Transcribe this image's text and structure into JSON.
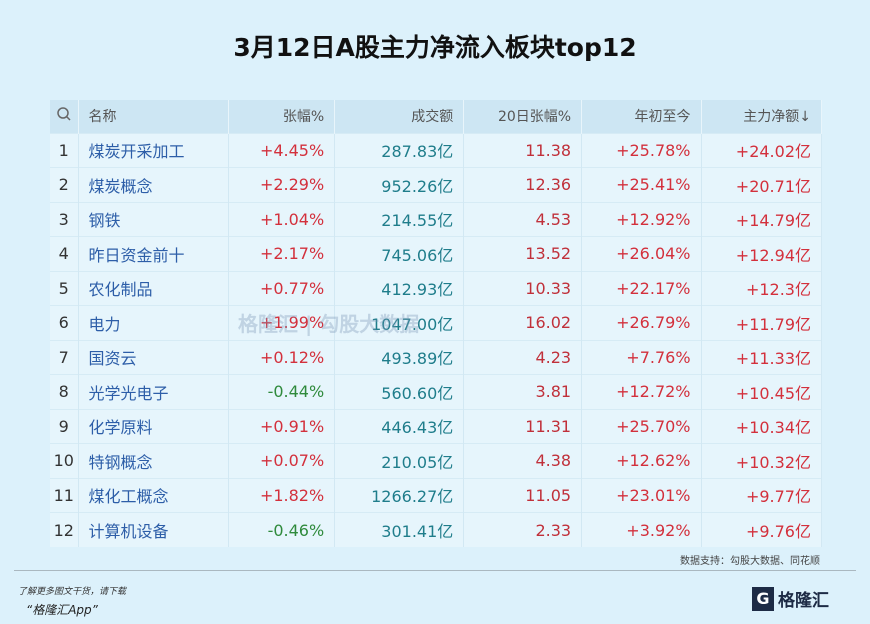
{
  "title": "3月12日A股主力净流入板块top12",
  "headers": [
    "名称",
    "张幅%",
    "成交额",
    "20日张幅%",
    "年初至今",
    "主力净额↓"
  ],
  "search_icon": "search-icon",
  "rows": [
    {
      "rank": "1",
      "name": "煤炭开采加工",
      "chg": "+4.45%",
      "vol": "287.83亿",
      "d20": "11.38",
      "ytd": "+25.78%",
      "net": "+24.02亿"
    },
    {
      "rank": "2",
      "name": "煤炭概念",
      "chg": "+2.29%",
      "vol": "952.26亿",
      "d20": "12.36",
      "ytd": "+25.41%",
      "net": "+20.71亿"
    },
    {
      "rank": "3",
      "name": "钢铁",
      "chg": "+1.04%",
      "vol": "214.55亿",
      "d20": "4.53",
      "ytd": "+12.92%",
      "net": "+14.79亿"
    },
    {
      "rank": "4",
      "name": "昨日资金前十",
      "chg": "+2.17%",
      "vol": "745.06亿",
      "d20": "13.52",
      "ytd": "+26.04%",
      "net": "+12.94亿"
    },
    {
      "rank": "5",
      "name": "农化制品",
      "chg": "+0.77%",
      "vol": "412.93亿",
      "d20": "10.33",
      "ytd": "+22.17%",
      "net": "+12.3亿"
    },
    {
      "rank": "6",
      "name": "电力",
      "chg": "+1.99%",
      "vol": "1047.00亿",
      "d20": "16.02",
      "ytd": "+26.79%",
      "net": "+11.79亿"
    },
    {
      "rank": "7",
      "name": "国资云",
      "chg": "+0.12%",
      "vol": "493.89亿",
      "d20": "4.23",
      "ytd": "+7.76%",
      "net": "+11.33亿"
    },
    {
      "rank": "8",
      "name": "光学光电子",
      "chg": "-0.44%",
      "vol": "560.60亿",
      "d20": "3.81",
      "ytd": "+12.72%",
      "net": "+10.45亿"
    },
    {
      "rank": "9",
      "name": "化学原料",
      "chg": "+0.91%",
      "vol": "446.43亿",
      "d20": "11.31",
      "ytd": "+25.70%",
      "net": "+10.34亿"
    },
    {
      "rank": "10",
      "name": "特钢概念",
      "chg": "+0.07%",
      "vol": "210.05亿",
      "d20": "4.38",
      "ytd": "+12.62%",
      "net": "+10.32亿"
    },
    {
      "rank": "11",
      "name": "煤化工概念",
      "chg": "+1.82%",
      "vol": "1266.27亿",
      "d20": "11.05",
      "ytd": "+23.01%",
      "net": "+9.77亿"
    },
    {
      "rank": "12",
      "name": "计算机设备",
      "chg": "-0.46%",
      "vol": "301.41亿",
      "d20": "2.33",
      "ytd": "+3.92%",
      "net": "+9.76亿"
    }
  ],
  "source": "数据支持：勾股大数据、同花顺",
  "promo_line1": "了解更多图文干货，请下载",
  "promo_line2": "“格隆汇App”",
  "logo_text": "格隆汇",
  "watermark": "格隆汇 | 勾股大数据",
  "colors": {
    "positive": "#d3303c",
    "negative": "#2f8a3c",
    "name": "#2d5ea8",
    "turnover": "#1f7d8b",
    "background": "#dcf1fb"
  }
}
